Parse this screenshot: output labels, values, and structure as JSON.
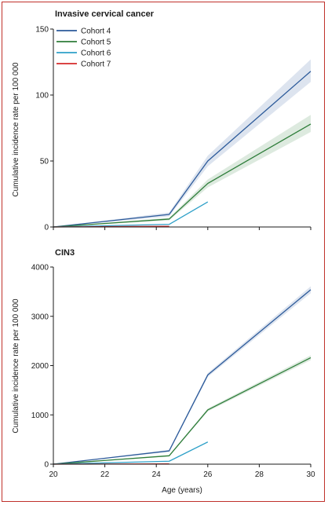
{
  "colors": {
    "cohort4": "#2c5a9a",
    "cohort5": "#2e7d3a",
    "cohort6": "#2ea0c8",
    "cohort7": "#d42a2a",
    "frame": "#c0312b"
  },
  "chart_data": [
    {
      "type": "line",
      "title": "Invasive cervical cancer",
      "xlabel": "",
      "ylabel": "Cumulative incidence rate per 100 000",
      "xlim": [
        20,
        30
      ],
      "ylim": [
        0,
        150
      ],
      "yticks": [
        "0",
        "50",
        "100",
        "150"
      ],
      "legend_position": "top-left",
      "series": [
        {
          "name": "Cohort 4",
          "color_key": "cohort4",
          "x": [
            20,
            24.5,
            26,
            30
          ],
          "y": [
            0,
            9.5,
            50,
            118
          ],
          "ci": [
            [
              0,
              0
            ],
            [
              8,
              11
            ],
            [
              46,
              54
            ],
            [
              110,
              127
            ]
          ]
        },
        {
          "name": "Cohort 5",
          "color_key": "cohort5",
          "x": [
            20,
            24.5,
            26,
            30
          ],
          "y": [
            0,
            6,
            33,
            78
          ],
          "ci": [
            [
              0,
              0
            ],
            [
              5,
              7
            ],
            [
              30,
              36
            ],
            [
              72,
              85
            ]
          ]
        },
        {
          "name": "Cohort 6",
          "color_key": "cohort6",
          "x": [
            20,
            24.5,
            26
          ],
          "y": [
            0,
            2,
            19
          ],
          "ci": null
        },
        {
          "name": "Cohort 7",
          "color_key": "cohort7",
          "x": [
            20,
            24.5
          ],
          "y": [
            0,
            0.5
          ],
          "ci": null
        }
      ]
    },
    {
      "type": "line",
      "title": "CIN3",
      "xlabel": "Age (years)",
      "ylabel": "Cumulative incidence rate per 100 000",
      "xlim": [
        20,
        30
      ],
      "ylim": [
        0,
        4000
      ],
      "xticks": [
        "20",
        "22",
        "24",
        "26",
        "28",
        "30"
      ],
      "yticks": [
        "0",
        "1000",
        "2000",
        "3000",
        "4000"
      ],
      "series": [
        {
          "name": "Cohort 4",
          "color_key": "cohort4",
          "x": [
            20,
            24.5,
            26,
            30
          ],
          "y": [
            0,
            270,
            1810,
            3540
          ],
          "ci": [
            [
              0,
              0
            ],
            [
              250,
              290
            ],
            [
              1770,
              1850
            ],
            [
              3470,
              3610
            ]
          ]
        },
        {
          "name": "Cohort 5",
          "color_key": "cohort5",
          "x": [
            20,
            24.5,
            26,
            30
          ],
          "y": [
            0,
            170,
            1100,
            2160
          ],
          "ci": [
            [
              0,
              0
            ],
            [
              155,
              185
            ],
            [
              1070,
              1130
            ],
            [
              2110,
              2210
            ]
          ]
        },
        {
          "name": "Cohort 6",
          "color_key": "cohort6",
          "x": [
            20,
            24.5,
            26
          ],
          "y": [
            0,
            60,
            450
          ],
          "ci": null
        },
        {
          "name": "Cohort 7",
          "color_key": "cohort7",
          "x": [
            20,
            24.5
          ],
          "y": [
            0,
            5
          ],
          "ci": null
        }
      ]
    }
  ]
}
